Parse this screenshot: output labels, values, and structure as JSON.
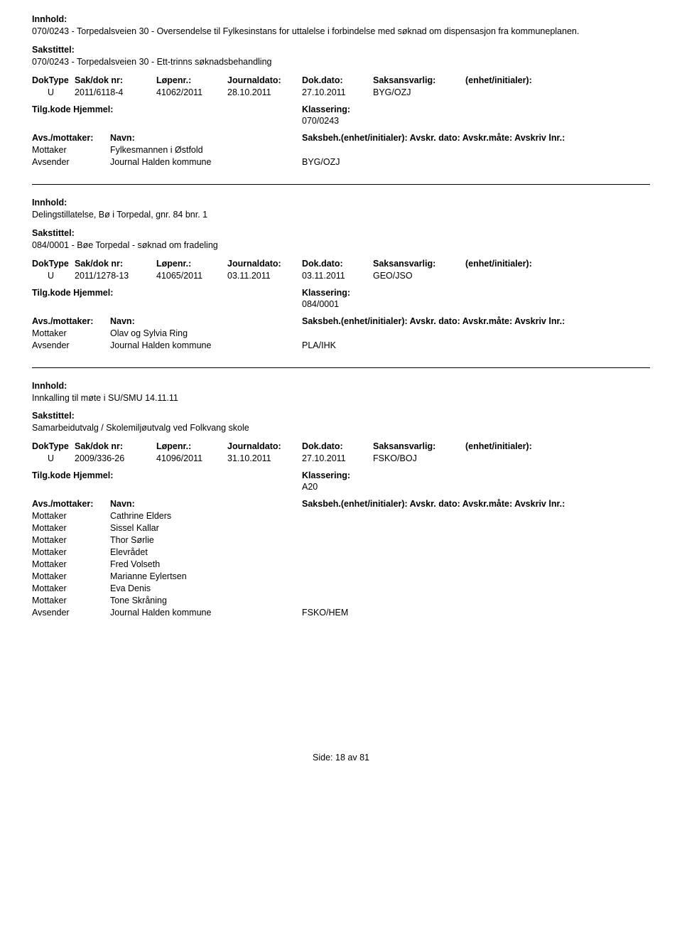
{
  "labels": {
    "innhold": "Innhold:",
    "sakstittel": "Sakstittel:",
    "doktype": "DokType",
    "saknr": "Sak/dok nr:",
    "lopenr": "Løpenr.:",
    "journaldato": "Journaldato:",
    "dokdato": "Dok.dato:",
    "saksansvarlig": "Saksansvarlig:",
    "enhet": "(enhet/initialer):",
    "tilgkode": "Tilg.kode",
    "hjemmel": "Hjemmel:",
    "klassering": "Klassering:",
    "avsmottaker": "Avs./mottaker:",
    "navn": "Navn:",
    "saksbeh_full": "Saksbeh.(enhet/initialer): Avskr. dato: Avskr.måte: Avskriv lnr.:",
    "mottaker": "Mottaker",
    "avsender": "Avsender"
  },
  "records": [
    {
      "content": "070/0243 - Torpedalsveien 30 - Oversendelse til Fylkesinstans for uttalelse i forbindelse med søknad om dispensasjon fra kommuneplanen.",
      "sakstittel": "070/0243 - Torpedalsveien 30 - Ett-trinns søknadsbehandling",
      "doktype": "U",
      "saknr": "2011/6118-4",
      "lopenr": "41062/2011",
      "journaldato": "28.10.2011",
      "dokdato": "27.10.2011",
      "saksansvarlig": "BYG/OZJ",
      "klassering": "070/0243",
      "parties": [
        {
          "role": "Mottaker",
          "name": "Fylkesmannen i Østfold",
          "code": ""
        },
        {
          "role": "Avsender",
          "name": "Journal Halden kommune",
          "code": "BYG/OZJ"
        }
      ]
    },
    {
      "content": "Delingstillatelse, Bø i Torpedal, gnr. 84 bnr. 1",
      "sakstittel": "084/0001 - Bøe Torpedal - søknad om fradeling",
      "doktype": "U",
      "saknr": "2011/1278-13",
      "lopenr": "41065/2011",
      "journaldato": "03.11.2011",
      "dokdato": "03.11.2011",
      "saksansvarlig": "GEO/JSO",
      "klassering": "084/0001",
      "parties": [
        {
          "role": "Mottaker",
          "name": "Olav og Sylvia Ring",
          "code": ""
        },
        {
          "role": "Avsender",
          "name": "Journal Halden kommune",
          "code": "PLA/IHK"
        }
      ]
    },
    {
      "content": "Innkalling til møte i SU/SMU 14.11.11",
      "sakstittel": "Samarbeidutvalg / Skolemiljøutvalg ved Folkvang skole",
      "doktype": "U",
      "saknr": "2009/336-26",
      "lopenr": "41096/2011",
      "journaldato": "31.10.2011",
      "dokdato": "27.10.2011",
      "saksansvarlig": "FSKO/BOJ",
      "klassering": "A20",
      "parties": [
        {
          "role": "Mottaker",
          "name": "Cathrine Elders",
          "code": ""
        },
        {
          "role": "Mottaker",
          "name": "Sissel Kallar",
          "code": ""
        },
        {
          "role": "Mottaker",
          "name": "Thor Sørlie",
          "code": ""
        },
        {
          "role": "Mottaker",
          "name": "Elevrådet",
          "code": ""
        },
        {
          "role": "Mottaker",
          "name": "Fred Volseth",
          "code": ""
        },
        {
          "role": "Mottaker",
          "name": "Marianne Eylertsen",
          "code": ""
        },
        {
          "role": "Mottaker",
          "name": "Eva Denis",
          "code": ""
        },
        {
          "role": "Mottaker",
          "name": "Tone Skråning",
          "code": ""
        },
        {
          "role": "Avsender",
          "name": "Journal Halden kommune",
          "code": "FSKO/HEM"
        }
      ]
    }
  ],
  "footer": {
    "side_label": "Side:",
    "page": "18",
    "av": "av",
    "total": "81"
  }
}
